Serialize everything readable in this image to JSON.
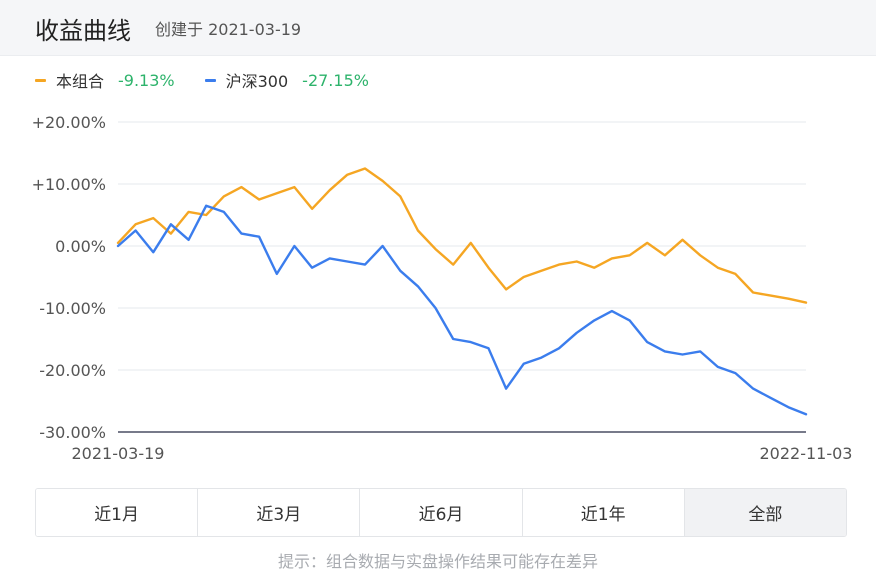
{
  "header": {
    "title": "收益曲线",
    "created": "创建于 2021-03-19"
  },
  "legend": [
    {
      "name": "本组合",
      "value": "-9.13%",
      "color": "#f5a623",
      "value_color": "#2db36b"
    },
    {
      "name": "沪深300",
      "value": "-27.15%",
      "color": "#3b7ded",
      "value_color": "#2db36b"
    }
  ],
  "colors": {
    "grid": "#e6e8ee",
    "axis": "#4a4f63",
    "tick_text": "#555555"
  },
  "chart_data": {
    "type": "line",
    "x_start_label": "2021-03-19",
    "x_end_label": "2022-11-03",
    "ylim": [
      -30,
      20
    ],
    "yticks": [
      20,
      10,
      0,
      -10,
      -20,
      -30
    ],
    "ytick_labels": [
      "+20.00%",
      "+10.00%",
      "0.00%",
      "-10.00%",
      "-20.00%",
      "-30.00%"
    ],
    "grid": true,
    "x_months": [
      0,
      0.5,
      1,
      1.5,
      2,
      2.5,
      3,
      3.5,
      4,
      4.5,
      5,
      5.5,
      6,
      6.5,
      7,
      7.5,
      8,
      8.5,
      9,
      9.5,
      10,
      10.5,
      11,
      11.5,
      12,
      12.5,
      13,
      13.5,
      14,
      14.5,
      15,
      15.5,
      16,
      16.5,
      17,
      17.5,
      18,
      18.5,
      19,
      19.5
    ],
    "series": [
      {
        "name": "本组合",
        "color": "#f5a623",
        "values": [
          0.5,
          3.5,
          4.5,
          2.0,
          5.5,
          5.0,
          8.0,
          9.5,
          7.5,
          8.5,
          9.5,
          6.0,
          9.0,
          11.5,
          12.5,
          10.5,
          8.0,
          2.5,
          -0.5,
          -3.0,
          0.5,
          -3.5,
          -7.0,
          -5.0,
          -4.0,
          -3.0,
          -2.5,
          -3.5,
          -2.0,
          -1.5,
          0.5,
          -1.5,
          1.0,
          -1.5,
          -3.5,
          -4.5,
          -7.5,
          -8.0,
          -8.5,
          -9.13
        ]
      },
      {
        "name": "沪深300",
        "color": "#3b7ded",
        "values": [
          0.0,
          2.5,
          -1.0,
          3.5,
          1.0,
          6.5,
          5.5,
          2.0,
          1.5,
          -4.5,
          0.0,
          -3.5,
          -2.0,
          -2.5,
          -3.0,
          0.0,
          -4.0,
          -6.5,
          -10.0,
          -15.0,
          -15.5,
          -16.5,
          -23.0,
          -19.0,
          -18.0,
          -16.5,
          -14.0,
          -12.0,
          -10.5,
          -12.0,
          -15.5,
          -17.0,
          -17.5,
          -17.0,
          -19.5,
          -20.5,
          -23.0,
          -24.5,
          -26.0,
          -27.15
        ]
      }
    ]
  },
  "periods": [
    "近1月",
    "近3月",
    "近6月",
    "近1年",
    "全部"
  ],
  "active_period": "全部",
  "tip": "提示：组合数据与实盘操作结果可能存在差异"
}
